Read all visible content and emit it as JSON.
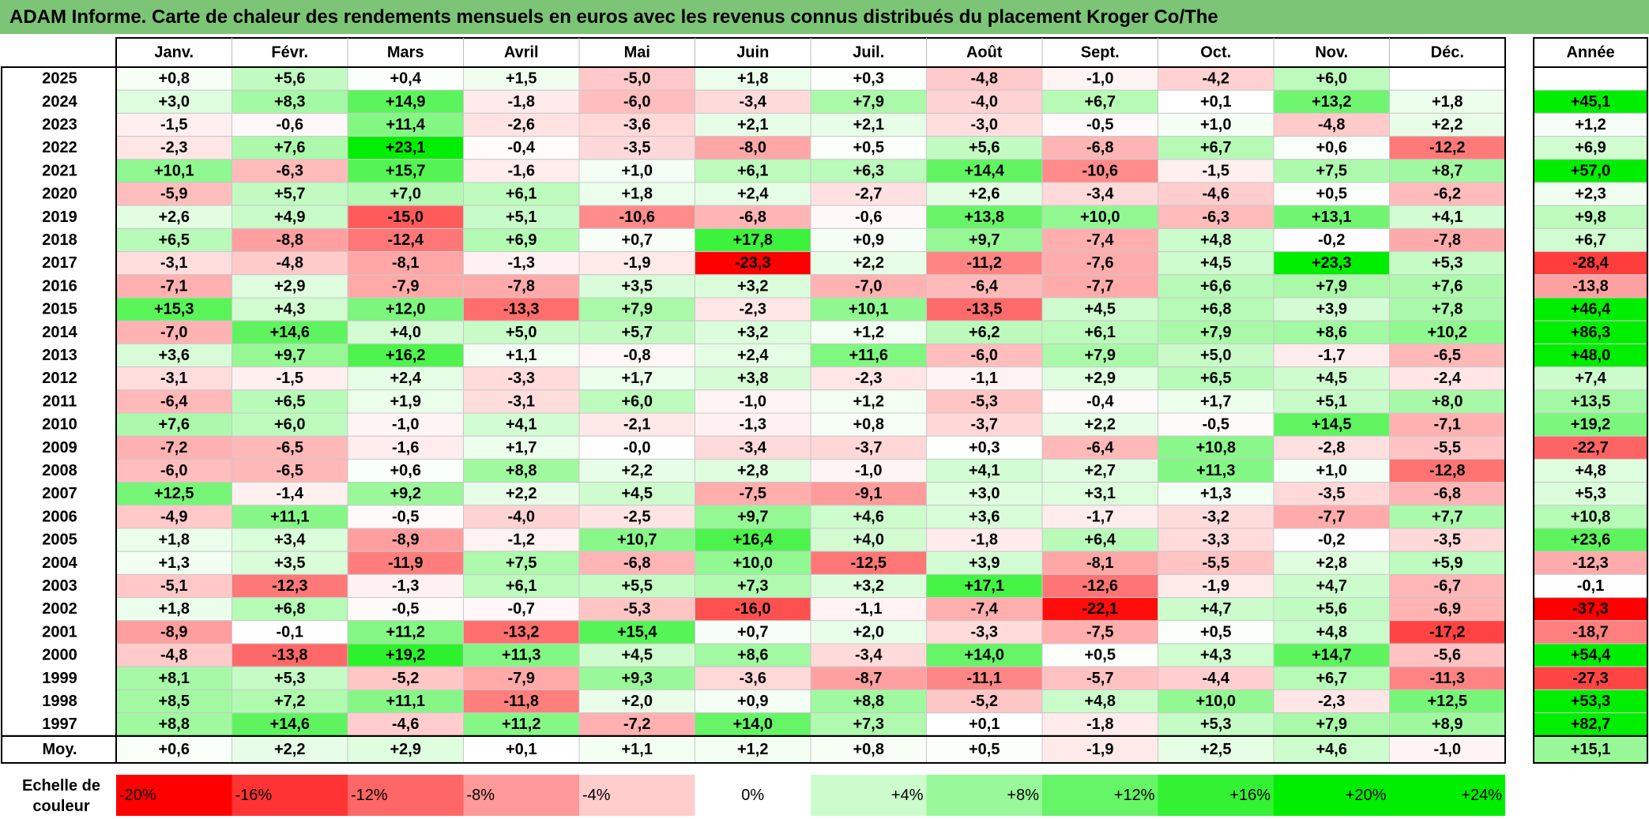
{
  "title": "ADAM Informe. Carte de chaleur des rendements mensuels en euros avec les revenus connus distribués du placement Kroger Co/The",
  "chart_data": {
    "type": "heatmap",
    "title": "ADAM Informe. Carte de chaleur des rendements mensuels en euros avec les revenus connus distribués du placement Kroger Co/The",
    "months": [
      "Janv.",
      "Févr.",
      "Mars",
      "Avril",
      "Mai",
      "Juin",
      "Juil.",
      "Août",
      "Sept.",
      "Oct.",
      "Nov.",
      "Déc."
    ],
    "year_column_label": "Année",
    "average_row_label": "Moy.",
    "scale_label": [
      "Echelle de",
      "couleur"
    ],
    "rows": [
      {
        "year": "2025",
        "values": [
          "+0,8",
          "+5,6",
          "+0,4",
          "+1,5",
          "-5,0",
          "+1,8",
          "+0,3",
          "-4,8",
          "-1,0",
          "-4,2",
          "+6,0",
          ""
        ],
        "annual": ""
      },
      {
        "year": "2024",
        "values": [
          "+3,0",
          "+8,3",
          "+14,9",
          "-1,8",
          "-6,0",
          "-3,4",
          "+7,9",
          "-4,0",
          "+6,7",
          "+0,1",
          "+13,2",
          "+1,8"
        ],
        "annual": "+45,1"
      },
      {
        "year": "2023",
        "values": [
          "-1,5",
          "-0,6",
          "+11,4",
          "-2,6",
          "-3,6",
          "+2,1",
          "+2,1",
          "-3,0",
          "-0,5",
          "+1,0",
          "-4,8",
          "+2,2"
        ],
        "annual": "+1,2"
      },
      {
        "year": "2022",
        "values": [
          "-2,3",
          "+7,6",
          "+23,1",
          "-0,4",
          "-3,5",
          "-8,0",
          "+0,5",
          "+5,6",
          "-6,8",
          "+6,7",
          "+0,6",
          "-12,2"
        ],
        "annual": "+6,9"
      },
      {
        "year": "2021",
        "values": [
          "+10,1",
          "-6,3",
          "+15,7",
          "-1,6",
          "+1,0",
          "+6,1",
          "+6,3",
          "+14,4",
          "-10,6",
          "-1,5",
          "+7,5",
          "+8,7"
        ],
        "annual": "+57,0"
      },
      {
        "year": "2020",
        "values": [
          "-5,9",
          "+5,7",
          "+7,0",
          "+6,1",
          "+1,8",
          "+2,4",
          "-2,7",
          "+2,6",
          "-3,4",
          "-4,6",
          "+0,5",
          "-6,2"
        ],
        "annual": "+2,3"
      },
      {
        "year": "2019",
        "values": [
          "+2,6",
          "+4,9",
          "-15,0",
          "+5,1",
          "-10,6",
          "-6,8",
          "-0,6",
          "+13,8",
          "+10,0",
          "-6,3",
          "+13,1",
          "+4,1"
        ],
        "annual": "+9,8"
      },
      {
        "year": "2018",
        "values": [
          "+6,5",
          "-8,8",
          "-12,4",
          "+6,9",
          "+0,7",
          "+17,8",
          "+0,9",
          "+9,7",
          "-7,4",
          "+4,8",
          "-0,2",
          "-7,8"
        ],
        "annual": "+6,7"
      },
      {
        "year": "2017",
        "values": [
          "-3,1",
          "-4,8",
          "-8,1",
          "-1,3",
          "-1,9",
          "-23,3",
          "+2,2",
          "-11,2",
          "-7,6",
          "+4,5",
          "+23,3",
          "+5,3"
        ],
        "annual": "-28,4"
      },
      {
        "year": "2016",
        "values": [
          "-7,1",
          "+2,9",
          "-7,9",
          "-7,8",
          "+3,5",
          "+3,2",
          "-7,0",
          "-6,4",
          "-7,7",
          "+6,6",
          "+7,9",
          "+7,6"
        ],
        "annual": "-13,8"
      },
      {
        "year": "2015",
        "values": [
          "+15,3",
          "+4,3",
          "+12,0",
          "-13,3",
          "+7,9",
          "-2,3",
          "+10,1",
          "-13,5",
          "+4,5",
          "+6,8",
          "+3,9",
          "+7,8"
        ],
        "annual": "+46,4"
      },
      {
        "year": "2014",
        "values": [
          "-7,0",
          "+14,6",
          "+4,0",
          "+5,0",
          "+5,7",
          "+3,2",
          "+1,2",
          "+6,2",
          "+6,1",
          "+7,9",
          "+8,6",
          "+10,2"
        ],
        "annual": "+86,3"
      },
      {
        "year": "2013",
        "values": [
          "+3,6",
          "+9,7",
          "+16,2",
          "+1,1",
          "-0,8",
          "+2,4",
          "+11,6",
          "-6,0",
          "+7,9",
          "+5,0",
          "-1,7",
          "-6,5"
        ],
        "annual": "+48,0"
      },
      {
        "year": "2012",
        "values": [
          "-3,1",
          "-1,5",
          "+2,4",
          "-3,3",
          "+1,7",
          "+3,8",
          "-2,3",
          "-1,1",
          "+2,9",
          "+6,5",
          "+4,5",
          "-2,4"
        ],
        "annual": "+7,4"
      },
      {
        "year": "2011",
        "values": [
          "-6,4",
          "+6,5",
          "+1,9",
          "-3,1",
          "+6,0",
          "-1,0",
          "+1,2",
          "-5,3",
          "-0,4",
          "+1,7",
          "+5,1",
          "+8,0"
        ],
        "annual": "+13,5"
      },
      {
        "year": "2010",
        "values": [
          "+7,6",
          "+6,0",
          "-1,0",
          "+4,1",
          "-2,1",
          "-1,3",
          "+0,8",
          "-3,7",
          "+2,2",
          "-0,5",
          "+14,5",
          "-7,1"
        ],
        "annual": "+19,2"
      },
      {
        "year": "2009",
        "values": [
          "-7,2",
          "-6,5",
          "-1,6",
          "+1,7",
          "-0,0",
          "-3,4",
          "-3,7",
          "+0,3",
          "-6,4",
          "+10,8",
          "-2,8",
          "-5,5"
        ],
        "annual": "-22,7"
      },
      {
        "year": "2008",
        "values": [
          "-6,0",
          "-6,5",
          "+0,6",
          "+8,8",
          "+2,2",
          "+2,8",
          "-1,0",
          "+4,1",
          "+2,7",
          "+11,3",
          "+1,0",
          "-12,8"
        ],
        "annual": "+4,8"
      },
      {
        "year": "2007",
        "values": [
          "+12,5",
          "-1,4",
          "+9,2",
          "+2,2",
          "+4,5",
          "-7,5",
          "-9,1",
          "+3,0",
          "+3,1",
          "+1,3",
          "-3,5",
          "-6,8"
        ],
        "annual": "+5,3"
      },
      {
        "year": "2006",
        "values": [
          "-4,9",
          "+11,1",
          "-0,5",
          "-4,0",
          "-2,5",
          "+9,7",
          "+4,6",
          "+3,6",
          "-1,7",
          "-3,2",
          "-7,7",
          "+7,7"
        ],
        "annual": "+10,8"
      },
      {
        "year": "2005",
        "values": [
          "+1,8",
          "+3,4",
          "-8,9",
          "-1,2",
          "+10,7",
          "+16,4",
          "+4,0",
          "-1,8",
          "+6,4",
          "-3,3",
          "-0,2",
          "-3,5"
        ],
        "annual": "+23,6"
      },
      {
        "year": "2004",
        "values": [
          "+1,3",
          "+3,5",
          "-11,9",
          "+7,5",
          "-6,8",
          "+10,0",
          "-12,5",
          "+3,9",
          "-8,1",
          "-5,5",
          "+2,8",
          "+5,9"
        ],
        "annual": "-12,3"
      },
      {
        "year": "2003",
        "values": [
          "-5,1",
          "-12,3",
          "-1,3",
          "+6,1",
          "+5,5",
          "+7,3",
          "+3,2",
          "+17,1",
          "-12,6",
          "-1,9",
          "+4,7",
          "-6,7"
        ],
        "annual": "-0,1"
      },
      {
        "year": "2002",
        "values": [
          "+1,8",
          "+6,8",
          "-0,5",
          "-0,7",
          "-5,3",
          "-16,0",
          "-1,1",
          "-7,4",
          "-22,1",
          "+4,7",
          "+5,6",
          "-6,9"
        ],
        "annual": "-37,3"
      },
      {
        "year": "2001",
        "values": [
          "-8,9",
          "-0,1",
          "+11,2",
          "-13,2",
          "+15,4",
          "+0,7",
          "+2,0",
          "-3,3",
          "-7,5",
          "+0,5",
          "+4,8",
          "-17,2"
        ],
        "annual": "-18,7"
      },
      {
        "year": "2000",
        "values": [
          "-4,8",
          "-13,8",
          "+19,2",
          "+11,3",
          "+4,5",
          "+8,6",
          "-3,4",
          "+14,0",
          "+0,5",
          "+4,3",
          "+14,7",
          "-5,6"
        ],
        "annual": "+54,4"
      },
      {
        "year": "1999",
        "values": [
          "+8,1",
          "+5,3",
          "-5,2",
          "-7,9",
          "+9,3",
          "-3,6",
          "-8,7",
          "-11,1",
          "-5,7",
          "-4,4",
          "+6,7",
          "-11,3"
        ],
        "annual": "-27,3"
      },
      {
        "year": "1998",
        "values": [
          "+8,5",
          "+7,2",
          "+11,1",
          "-11,8",
          "+2,0",
          "+0,9",
          "+8,8",
          "-5,2",
          "+4,8",
          "+10,0",
          "-2,3",
          "+12,5"
        ],
        "annual": "+53,3"
      },
      {
        "year": "1997",
        "values": [
          "+8,8",
          "+14,6",
          "-4,6",
          "+11,2",
          "-7,2",
          "+14,0",
          "+7,3",
          "+0,1",
          "-1,8",
          "+5,3",
          "+7,9",
          "+8,9"
        ],
        "annual": "+82,7"
      }
    ],
    "averages": {
      "values": [
        "+0,6",
        "+2,2",
        "+2,9",
        "+0,1",
        "+1,1",
        "+1,2",
        "+0,8",
        "+0,5",
        "-1,9",
        "+2,5",
        "+4,6",
        "-1,0"
      ],
      "annual": "+15,1"
    },
    "scale": [
      "-20%",
      "-16%",
      "-12%",
      "-8%",
      "-4%",
      "0%",
      "+4%",
      "+8%",
      "+12%",
      "+16%",
      "+20%",
      "+24%"
    ],
    "colors": {
      "negative": "#ff0000",
      "neutral": "#ffffff",
      "positive": "#00ee00",
      "title_bg": "#7cc576"
    }
  }
}
